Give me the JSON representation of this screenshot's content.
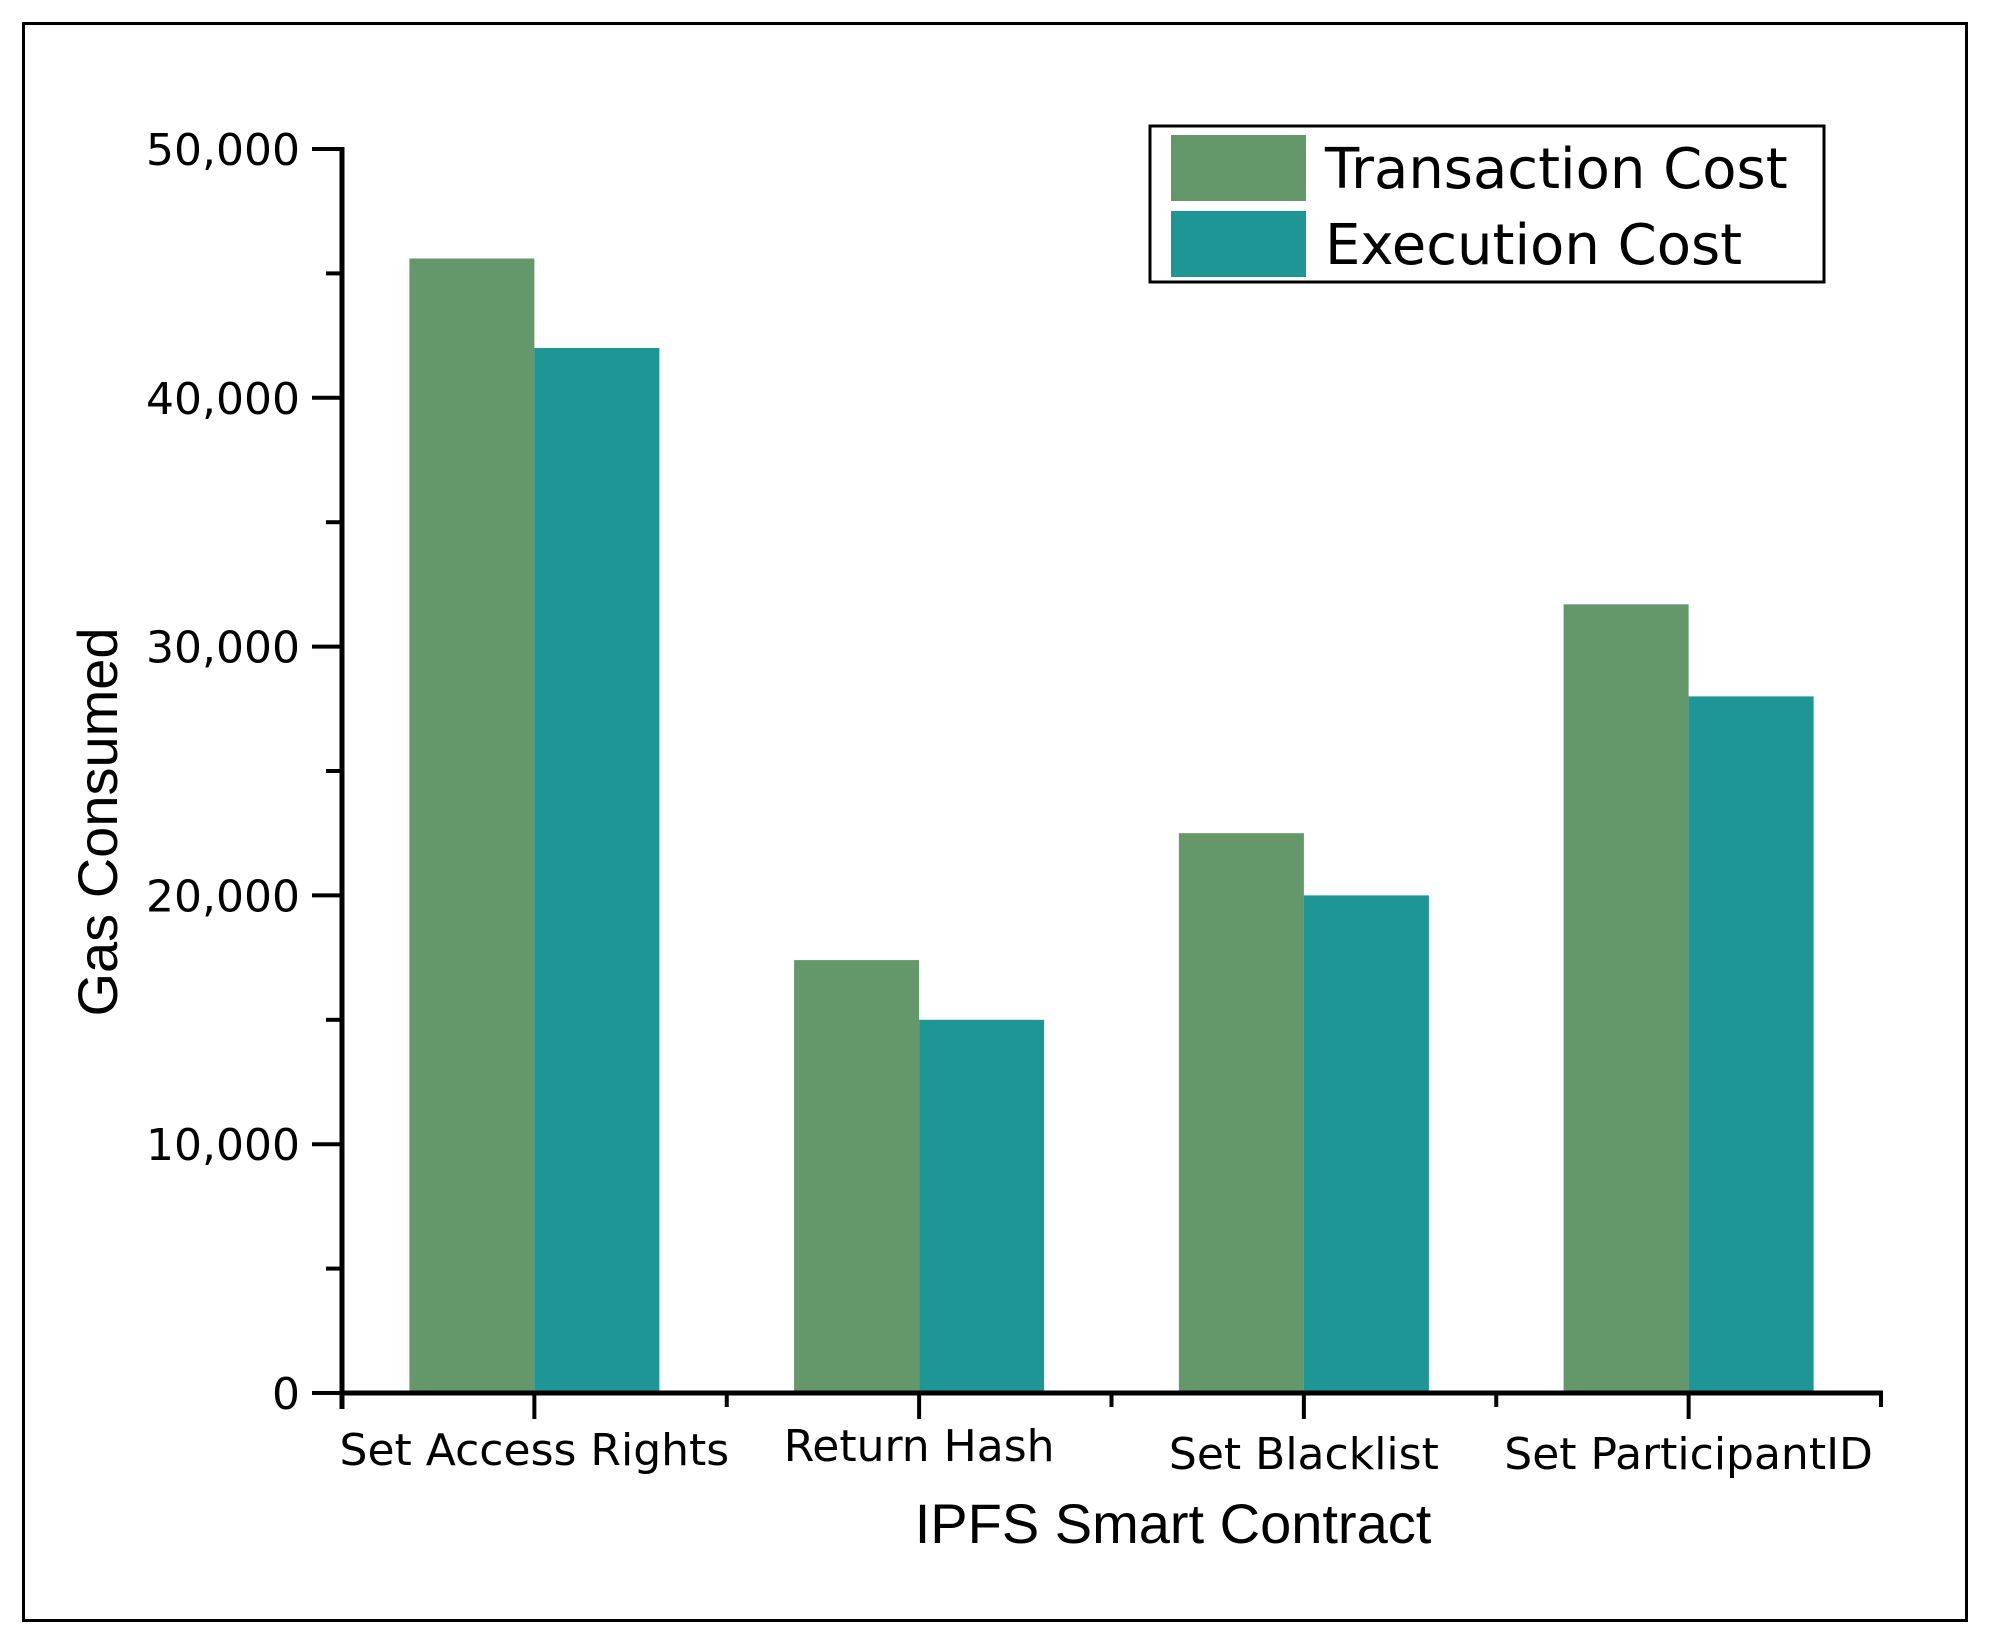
{
  "chart_data": {
    "type": "bar",
    "title": "",
    "xlabel": "IPFS Smart Contract",
    "ylabel": "Gas Consumed",
    "categories": [
      "Set Access Rights",
      "Return Hash",
      "Set Blacklist",
      "Set ParticipantID"
    ],
    "series": [
      {
        "name": "Transaction Cost",
        "color": "#64976a",
        "values": [
          45600,
          17400,
          22500,
          31700
        ]
      },
      {
        "name": "Execution Cost",
        "color": "#1f9696",
        "values": [
          42000,
          15000,
          20000,
          28000
        ]
      }
    ],
    "ylim": [
      0,
      50000
    ],
    "yticks": [
      0,
      10000,
      20000,
      30000,
      40000,
      50000
    ],
    "ytick_labels": [
      "0",
      "10,000",
      "20,000",
      "30,000",
      "40,000",
      "50,000"
    ],
    "grid": false,
    "legend_position": "top-right"
  }
}
